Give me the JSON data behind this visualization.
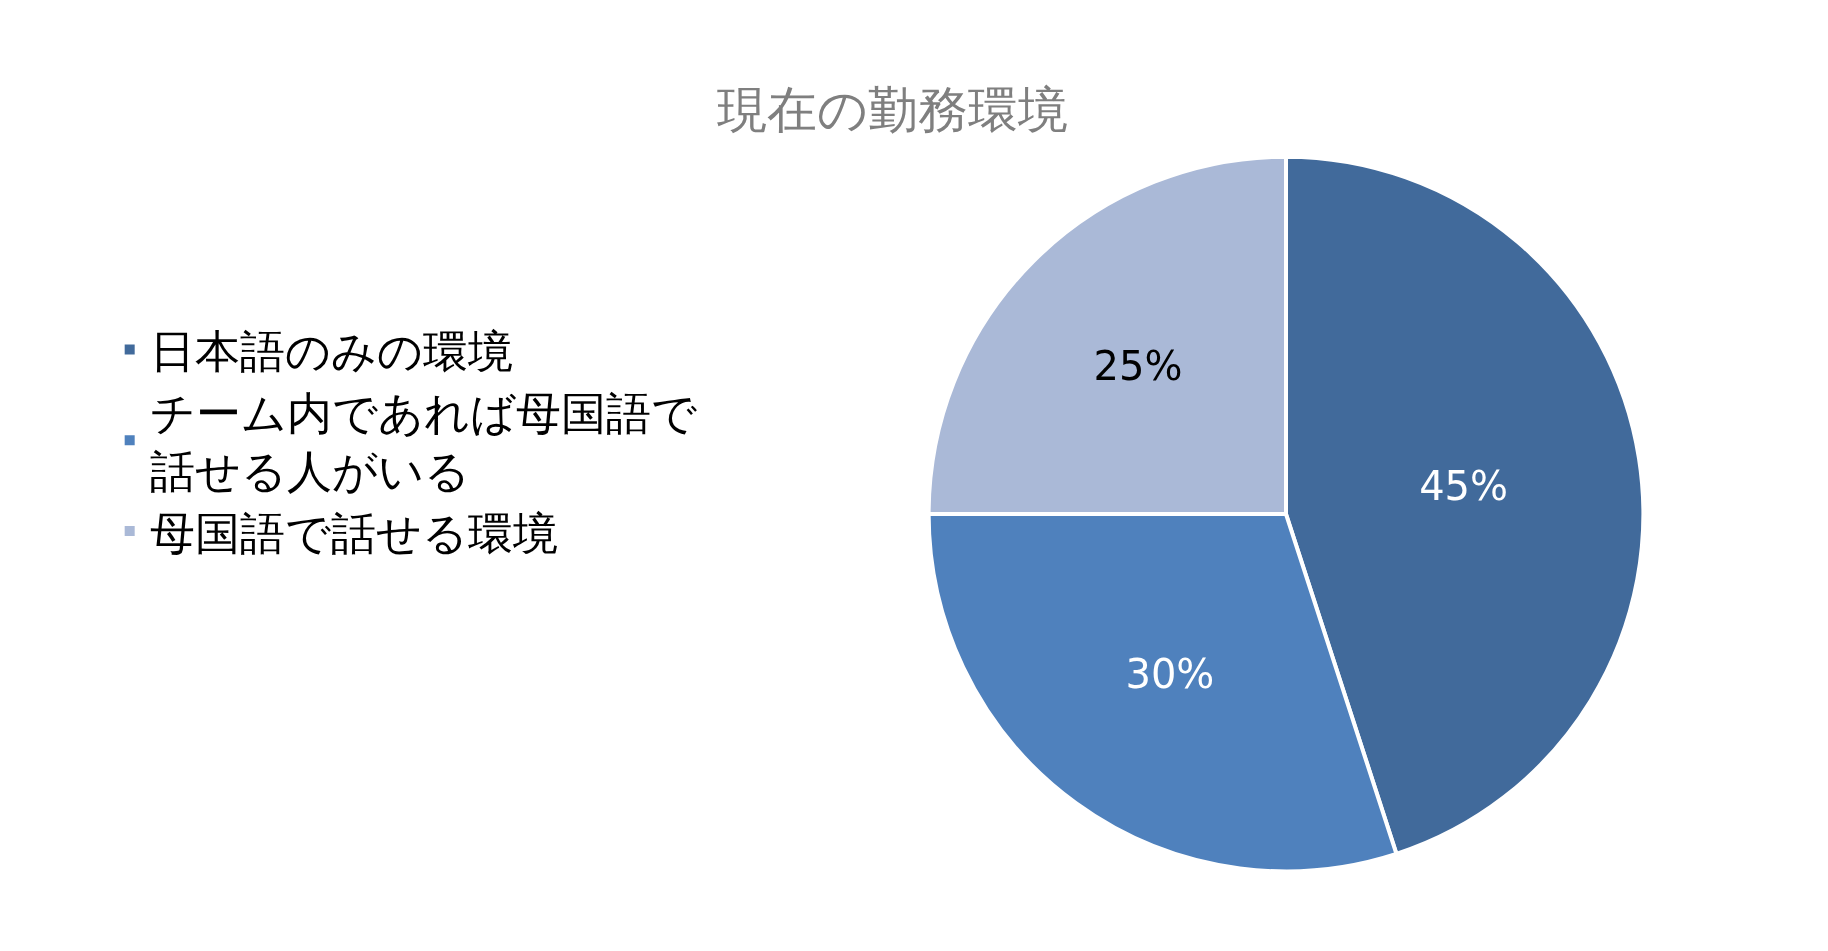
{
  "chart_data": {
    "type": "pie",
    "title": "現在の勤務環境",
    "categories": [
      "日本語のみの環境",
      "チーム内であれば母国語で話せる人がいる",
      "母国語で話せる環境"
    ],
    "values": [
      45,
      30,
      25
    ],
    "colors": [
      "#416a9b",
      "#4f81bd",
      "#aab9d7"
    ],
    "value_labels": [
      "45%",
      "30%",
      "25%"
    ],
    "legend": "left"
  }
}
